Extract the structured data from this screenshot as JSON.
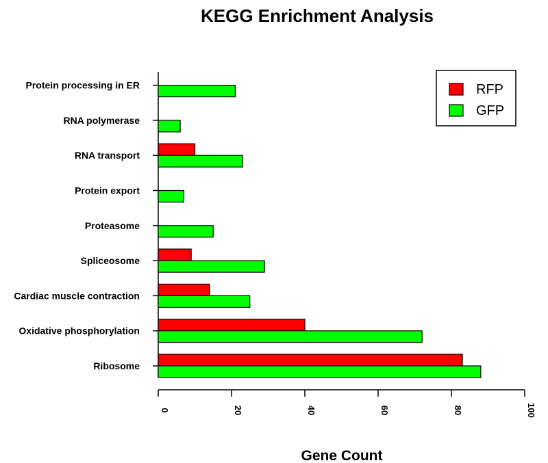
{
  "chart_data": {
    "type": "bar",
    "orientation": "horizontal",
    "title": "KEGG Enrichment Analysis",
    "xlabel": "Gene Count",
    "ylabel": "",
    "xlim": [
      0,
      100
    ],
    "xticks": [
      "0",
      "20",
      "40",
      "60",
      "80",
      "100"
    ],
    "grid": false,
    "legend_position": "top-right",
    "categories": [
      "Ribosome",
      "Oxidative phosphorylation",
      "Cardiac muscle contraction",
      "Spliceosome",
      "Proteasome",
      "Protein export",
      "RNA transport",
      "RNA polymerase",
      "Protein processing in ER"
    ],
    "series": [
      {
        "name": "RFP",
        "color": "#ff0000",
        "values": [
          83,
          40,
          14,
          9,
          0,
          0,
          10,
          0,
          0
        ]
      },
      {
        "name": "GFP",
        "color": "#00ff00",
        "values": [
          88,
          72,
          25,
          29,
          15,
          7,
          23,
          6,
          21
        ]
      }
    ]
  }
}
